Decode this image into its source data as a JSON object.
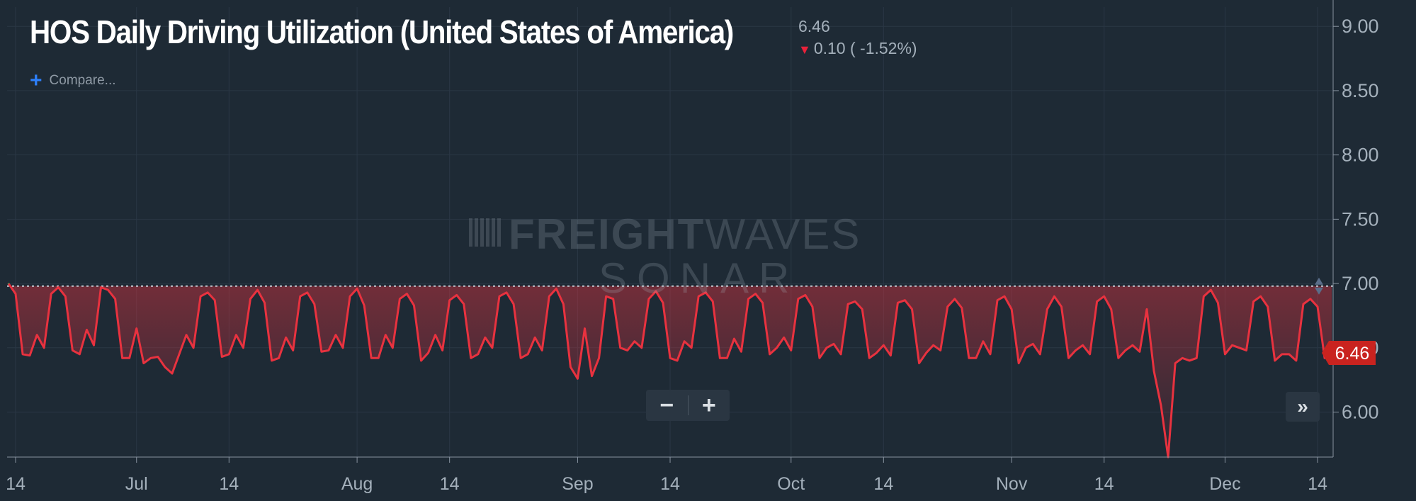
{
  "title": "HOS Daily Driving Utilization (United States of America)",
  "last_value": "6.46",
  "change_text": "0.10 ( -1.52%)",
  "compare_label": "Compare...",
  "zoom_out_label": "−",
  "zoom_in_label": "+",
  "forward_label": "»",
  "watermark": {
    "line1_bold": "FREIGHT",
    "line1_thin": "WAVES",
    "line2": "SONAR"
  },
  "colors": {
    "line": "#e8323f",
    "accent": "#2d7ff9",
    "price_tag": "#c9231f",
    "background": "#1e2a35"
  },
  "chart_data": {
    "type": "area",
    "title": "HOS Daily Driving Utilization (United States of America)",
    "xlabel": "",
    "ylabel": "",
    "ylim": [
      5.65,
      9.15
    ],
    "yticks": [
      6.0,
      6.5,
      7.0,
      7.5,
      8.0,
      8.5,
      9.0
    ],
    "ytick_labels": [
      "6.00",
      "6.50",
      "7.00",
      "7.50",
      "8.00",
      "8.50",
      "9.00"
    ],
    "x_range": [
      "2019-06-14",
      "2019-12-14"
    ],
    "xticks": [
      {
        "date": "2019-06-14",
        "label": "14"
      },
      {
        "date": "2019-07-01",
        "label": "Jul"
      },
      {
        "date": "2019-07-14",
        "label": "14"
      },
      {
        "date": "2019-08-01",
        "label": "Aug"
      },
      {
        "date": "2019-08-14",
        "label": "14"
      },
      {
        "date": "2019-09-01",
        "label": "Sep"
      },
      {
        "date": "2019-09-14",
        "label": "14"
      },
      {
        "date": "2019-10-01",
        "label": "Oct"
      },
      {
        "date": "2019-10-14",
        "label": "14"
      },
      {
        "date": "2019-11-01",
        "label": "Nov"
      },
      {
        "date": "2019-11-14",
        "label": "14"
      },
      {
        "date": "2019-12-01",
        "label": "Dec"
      },
      {
        "date": "2019-12-14",
        "label": "14"
      }
    ],
    "reference_line": 6.98,
    "last_value": 6.46,
    "grid": true,
    "series": [
      {
        "start": "2019-06-13",
        "values": [
          7.0,
          6.92,
          6.45,
          6.44,
          6.6,
          6.5,
          6.92,
          6.97,
          6.9,
          6.48,
          6.45,
          6.64,
          6.52,
          6.97,
          6.95,
          6.88,
          6.42,
          6.42,
          6.65,
          6.38,
          6.42,
          6.43,
          6.35,
          6.3,
          6.45,
          6.6,
          6.5,
          6.9,
          6.93,
          6.87,
          6.43,
          6.45,
          6.6,
          6.5,
          6.88,
          6.95,
          6.85,
          6.4,
          6.42,
          6.58,
          6.48,
          6.9,
          6.93,
          6.84,
          6.47,
          6.48,
          6.6,
          6.5,
          6.9,
          6.96,
          6.83,
          6.42,
          6.42,
          6.6,
          6.5,
          6.88,
          6.92,
          6.83,
          6.4,
          6.46,
          6.6,
          6.48,
          6.87,
          6.91,
          6.84,
          6.42,
          6.45,
          6.58,
          6.5,
          6.9,
          6.93,
          6.84,
          6.42,
          6.45,
          6.58,
          6.48,
          6.9,
          6.96,
          6.84,
          6.35,
          6.26,
          6.65,
          6.28,
          6.42,
          6.9,
          6.88,
          6.5,
          6.48,
          6.55,
          6.5,
          6.88,
          6.94,
          6.85,
          6.42,
          6.4,
          6.55,
          6.5,
          6.9,
          6.93,
          6.86,
          6.42,
          6.42,
          6.57,
          6.47,
          6.88,
          6.92,
          6.85,
          6.45,
          6.5,
          6.58,
          6.48,
          6.88,
          6.91,
          6.82,
          6.42,
          6.5,
          6.53,
          6.45,
          6.84,
          6.86,
          6.8,
          6.42,
          6.46,
          6.52,
          6.44,
          6.85,
          6.87,
          6.8,
          6.38,
          6.46,
          6.52,
          6.48,
          6.82,
          6.88,
          6.81,
          6.42,
          6.42,
          6.55,
          6.45,
          6.87,
          6.9,
          6.8,
          6.38,
          6.5,
          6.53,
          6.45,
          6.8,
          6.9,
          6.82,
          6.42,
          6.48,
          6.52,
          6.45,
          6.86,
          6.9,
          6.8,
          6.42,
          6.48,
          6.52,
          6.47,
          6.8,
          6.32,
          6.05,
          5.65,
          6.38,
          6.42,
          6.4,
          6.42,
          6.9,
          6.95,
          6.85,
          6.45,
          6.52,
          6.5,
          6.48,
          6.86,
          6.9,
          6.82,
          6.4,
          6.45,
          6.45,
          6.4,
          6.84,
          6.88,
          6.82,
          6.42,
          6.46
        ]
      }
    ]
  }
}
